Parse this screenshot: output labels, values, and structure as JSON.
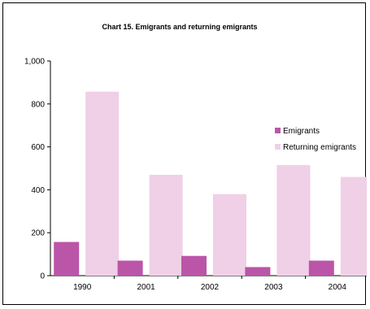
{
  "chart_data": {
    "type": "bar",
    "title": "Chart 15.  Emigrants and returning emigrants",
    "xlabel": "",
    "ylabel": "",
    "categories": [
      "1990",
      "2001",
      "2002",
      "2003",
      "2004"
    ],
    "series": [
      {
        "name": "Emigrants",
        "values": [
          157,
          70,
          92,
          40,
          70
        ],
        "color": "#bb55a8"
      },
      {
        "name": "Returning emigrants",
        "values": [
          857,
          470,
          380,
          515,
          460
        ],
        "color": "#f0d0e6"
      }
    ],
    "ylim": [
      0,
      1000
    ],
    "yticks": [
      0,
      200,
      400,
      600,
      800,
      1000
    ],
    "ytick_labels": [
      "0",
      "200",
      "400",
      "600",
      "800",
      "1,000"
    ],
    "grid": false,
    "legend_position": "right"
  }
}
